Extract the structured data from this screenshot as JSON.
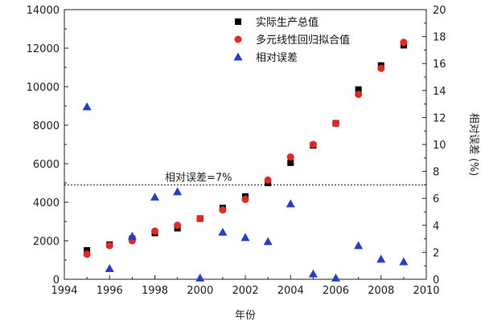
{
  "chart_data": {
    "type": "scatter",
    "xlabel": "年份",
    "ylabel_right": "相对误差 (%)",
    "xlim": [
      1994,
      2010
    ],
    "ylim_left": [
      0,
      14000
    ],
    "ylim_right": [
      0,
      20
    ],
    "x_ticks": [
      "1994",
      "1996",
      "1998",
      "2000",
      "2002",
      "2004",
      "2006",
      "2008",
      "2010"
    ],
    "y_left_ticks": [
      "0",
      "2000",
      "4000",
      "6000",
      "8000",
      "10000",
      "12000",
      "14000"
    ],
    "y_right_ticks": [
      "0",
      "2",
      "4",
      "6",
      "8",
      "10",
      "12",
      "14",
      "16",
      "18",
      "20"
    ],
    "legend_position": "top-right",
    "reference_line": {
      "label": "相对误差=7%",
      "y_right": 7
    },
    "series": [
      {
        "name": "实际生产总值",
        "axis": "left",
        "marker": "square",
        "color": "#000000",
        "x": [
          1995,
          1996,
          1997,
          1998,
          1999,
          2000,
          2001,
          2002,
          2003,
          2004,
          2005,
          2006,
          2007,
          2008,
          2009
        ],
        "values": [
          1500,
          1800,
          2100,
          2400,
          2650,
          3150,
          3700,
          4300,
          5000,
          6050,
          6950,
          8100,
          9850,
          11100,
          12150
        ]
      },
      {
        "name": "多元线性回归拟合值",
        "axis": "left",
        "marker": "circle",
        "color": "#e8251f",
        "x": [
          1995,
          1996,
          1997,
          1998,
          1999,
          2000,
          2001,
          2002,
          2003,
          2004,
          2005,
          2006,
          2007,
          2008,
          2009
        ],
        "values": [
          1300,
          1750,
          2000,
          2500,
          2800,
          3150,
          3600,
          4150,
          5150,
          6350,
          7000,
          8100,
          9600,
          10950,
          12300
        ]
      },
      {
        "name": "相对误差",
        "axis": "right",
        "marker": "triangle",
        "color": "#1f3fd0",
        "x": [
          1995,
          1996,
          1997,
          1998,
          1999,
          2000,
          2001,
          2002,
          2003,
          2004,
          2005,
          2006,
          2007,
          2008,
          2009
        ],
        "values": [
          12.8,
          0.8,
          3.2,
          6.1,
          6.5,
          0.1,
          3.5,
          3.1,
          2.8,
          5.6,
          0.4,
          0.1,
          2.5,
          1.5,
          1.3
        ]
      }
    ]
  }
}
